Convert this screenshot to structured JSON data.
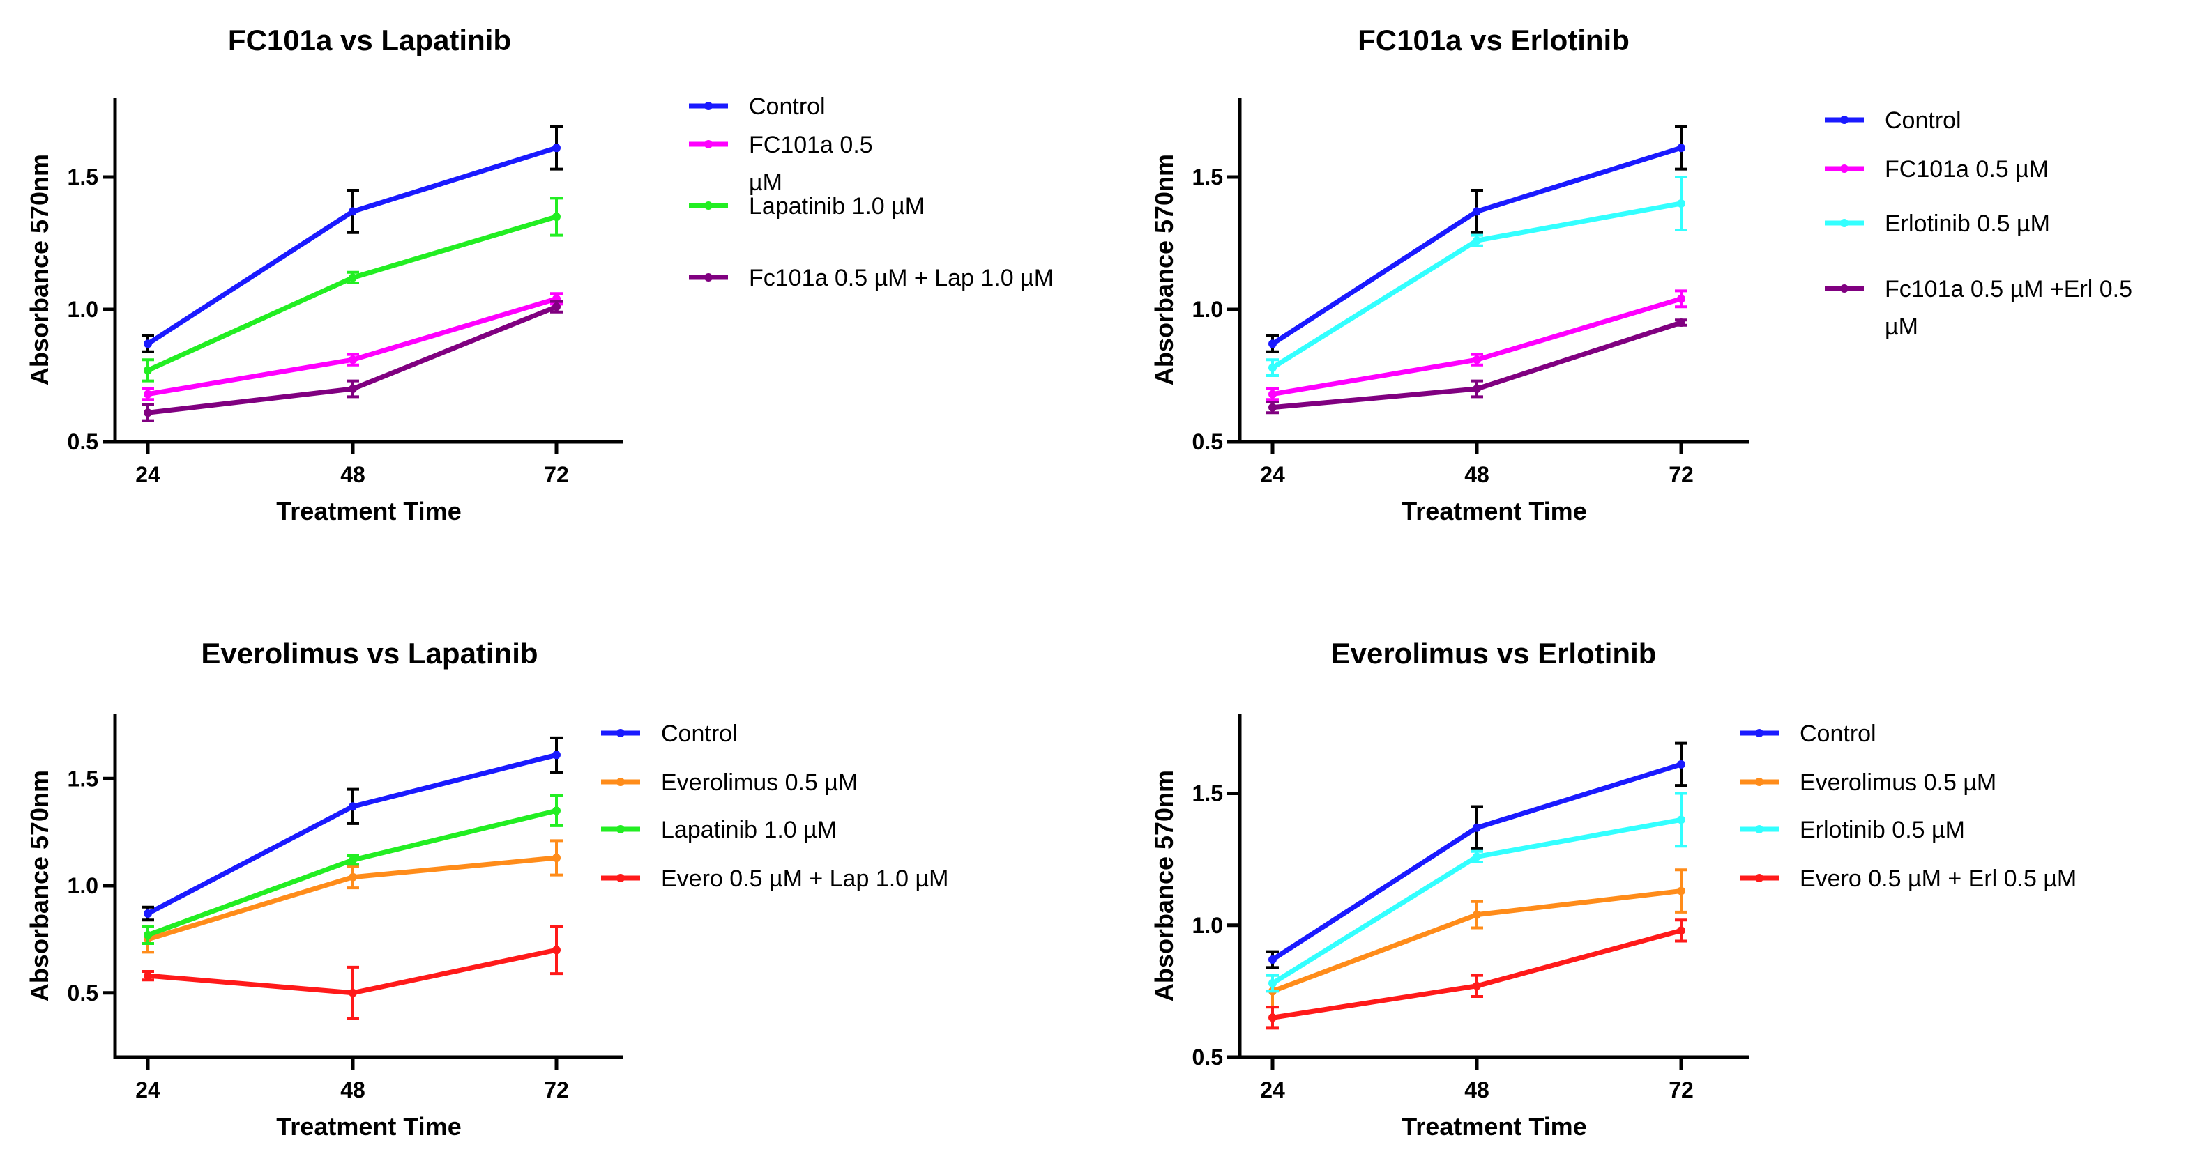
{
  "chart_data": [
    {
      "type": "line",
      "title": "FC101a  vs Lapatinib",
      "xlabel": "Treatment Time",
      "ylabel": "Absorbance 570nm",
      "x": [
        24,
        48,
        72
      ],
      "x_tick_labels": [
        "24",
        "48",
        "72"
      ],
      "ylim": [
        0.5,
        1.8
      ],
      "y_ticks": [
        0.5,
        1.0,
        1.5
      ],
      "y_tick_labels": [
        "0.5",
        "1.0",
        "1.5"
      ],
      "series": [
        {
          "name": "Control",
          "label_lines": [
            "Control"
          ],
          "color": "#1a1aff",
          "values": [
            0.87,
            1.37,
            1.61
          ],
          "errors": [
            0.03,
            0.08,
            0.08
          ]
        },
        {
          "name": "FC101a 0.5 µM",
          "label_lines": [
            "FC101a 0.5",
            "µM"
          ],
          "color": "#ff00ff",
          "values": [
            0.68,
            0.81,
            1.04
          ],
          "errors": [
            0.02,
            0.02,
            0.02
          ]
        },
        {
          "name": "Lapatinib 1.0 µM",
          "label_lines": [
            "Lapatinib 1.0 µM"
          ],
          "color": "#22ee22",
          "values": [
            0.77,
            1.12,
            1.35
          ],
          "errors": [
            0.04,
            0.02,
            0.07
          ]
        },
        {
          "name": "Fc101a 0.5 µM + Lap 1.0 µM",
          "label_lines": [
            "Fc101a 0.5 µM + Lap 1.0 µM"
          ],
          "color": "#800080",
          "values": [
            0.61,
            0.7,
            1.01
          ],
          "errors": [
            0.03,
            0.03,
            0.02
          ]
        }
      ]
    },
    {
      "type": "line",
      "title": "FC101a vs Erlotinib",
      "xlabel": "Treatment Time",
      "ylabel": "Absorbance 570nm",
      "x": [
        24,
        48,
        72
      ],
      "x_tick_labels": [
        "24",
        "48",
        "72"
      ],
      "ylim": [
        0.5,
        1.8
      ],
      "y_ticks": [
        0.5,
        1.0,
        1.5
      ],
      "y_tick_labels": [
        "0.5",
        "1.0",
        "1.5"
      ],
      "series": [
        {
          "name": "Control",
          "label_lines": [
            "Control"
          ],
          "color": "#1a1aff",
          "values": [
            0.87,
            1.37,
            1.61
          ],
          "errors": [
            0.03,
            0.08,
            0.08
          ]
        },
        {
          "name": "FC101a 0.5 µM",
          "label_lines": [
            "FC101a 0.5 µM"
          ],
          "color": "#ff00ff",
          "values": [
            0.68,
            0.81,
            1.04
          ],
          "errors": [
            0.02,
            0.02,
            0.03
          ]
        },
        {
          "name": "Erlotinib 0.5 µM",
          "label_lines": [
            "Erlotinib 0.5 µM"
          ],
          "color": "#33ffff",
          "values": [
            0.78,
            1.26,
            1.4
          ],
          "errors": [
            0.03,
            0.02,
            0.1
          ]
        },
        {
          "name": "Fc101a 0.5 µM +Erl 0.5 µM",
          "label_lines": [
            "Fc101a 0.5 µM +Erl 0.5",
            "µM"
          ],
          "color": "#800080",
          "values": [
            0.63,
            0.7,
            0.95
          ],
          "errors": [
            0.02,
            0.03,
            0.01
          ]
        }
      ]
    },
    {
      "type": "line",
      "title": "Everolimus vs Lapatinib",
      "xlabel": "Treatment Time",
      "ylabel": "Absorbance 570nm",
      "x": [
        24,
        48,
        72
      ],
      "x_tick_labels": [
        "24",
        "48",
        "72"
      ],
      "ylim": [
        0.2,
        1.8
      ],
      "y_ticks": [
        0.5,
        1.0,
        1.5
      ],
      "y_tick_labels": [
        "0.5",
        "1.0",
        "1.5"
      ],
      "series": [
        {
          "name": "Control",
          "label_lines": [
            "Control"
          ],
          "color": "#1a1aff",
          "values": [
            0.87,
            1.37,
            1.61
          ],
          "errors": [
            0.03,
            0.08,
            0.08
          ]
        },
        {
          "name": "Everolimus 0.5 µM",
          "label_lines": [
            "Everolimus 0.5 µM"
          ],
          "color": "#ff8c1a",
          "values": [
            0.75,
            1.04,
            1.13
          ],
          "errors": [
            0.06,
            0.05,
            0.08
          ]
        },
        {
          "name": "Lapatinib 1.0 µM",
          "label_lines": [
            "Lapatinib 1.0 µM"
          ],
          "color": "#22ee22",
          "values": [
            0.77,
            1.12,
            1.35
          ],
          "errors": [
            0.04,
            0.02,
            0.07
          ]
        },
        {
          "name": "Evero 0.5 µM + Lap 1.0 µM",
          "label_lines": [
            "Evero 0.5 µM + Lap 1.0 µM"
          ],
          "color": "#ff1a1a",
          "values": [
            0.58,
            0.5,
            0.7
          ],
          "errors": [
            0.02,
            0.12,
            0.11
          ]
        }
      ]
    },
    {
      "type": "line",
      "title": "Everolimus vs Erlotinib",
      "xlabel": "Treatment Time",
      "ylabel": "Absorbance 570nm",
      "x": [
        24,
        48,
        72
      ],
      "x_tick_labels": [
        "24",
        "48",
        "72"
      ],
      "ylim": [
        0.5,
        1.8
      ],
      "y_ticks": [
        0.5,
        1.0,
        1.5
      ],
      "y_tick_labels": [
        "0.5",
        "1.0",
        "1.5"
      ],
      "series": [
        {
          "name": "Control",
          "label_lines": [
            "Control"
          ],
          "color": "#1a1aff",
          "values": [
            0.87,
            1.37,
            1.61
          ],
          "errors": [
            0.03,
            0.08,
            0.08
          ]
        },
        {
          "name": "Everolimus 0.5 µM",
          "label_lines": [
            "Everolimus 0.5 µM"
          ],
          "color": "#ff8c1a",
          "values": [
            0.75,
            1.04,
            1.13
          ],
          "errors": [
            0.06,
            0.05,
            0.08
          ]
        },
        {
          "name": "Erlotinib 0.5 µM",
          "label_lines": [
            "Erlotinib 0.5 µM"
          ],
          "color": "#33ffff",
          "values": [
            0.78,
            1.26,
            1.4
          ],
          "errors": [
            0.03,
            0.02,
            0.1
          ]
        },
        {
          "name": "Evero 0.5 µM + Erl 0.5 µM",
          "label_lines": [
            "Evero 0.5 µM + Erl 0.5 µM"
          ],
          "color": "#ff1a1a",
          "values": [
            0.65,
            0.77,
            0.98
          ],
          "errors": [
            0.04,
            0.04,
            0.04
          ]
        }
      ]
    }
  ]
}
